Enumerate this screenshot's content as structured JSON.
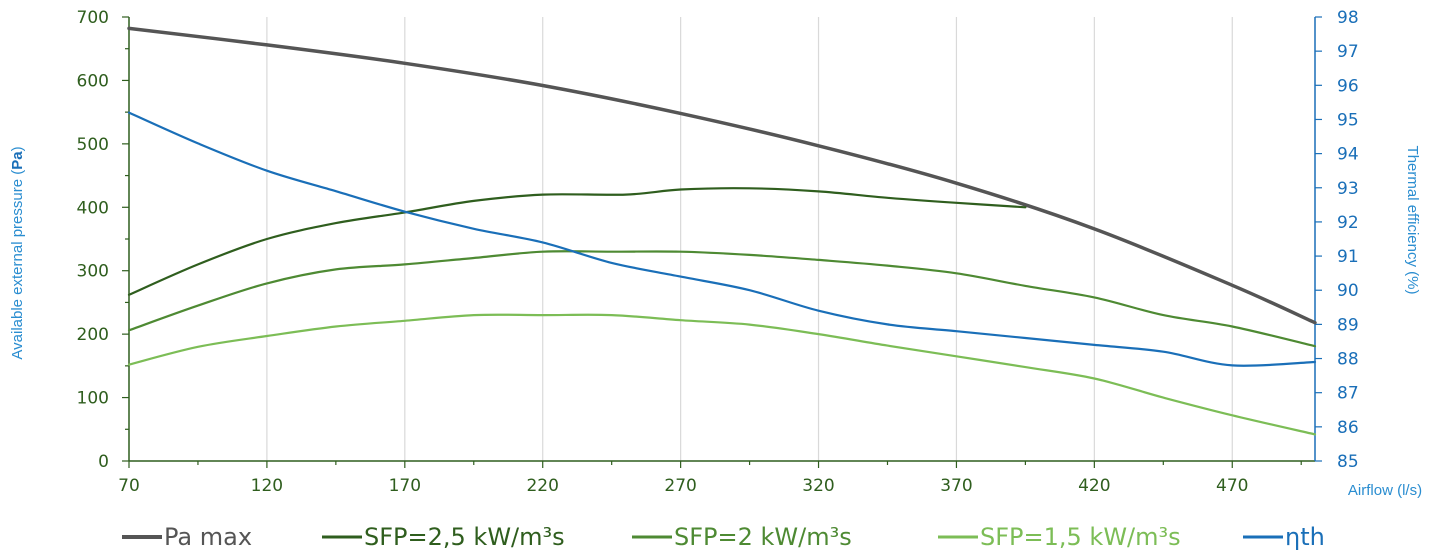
{
  "chart_data": {
    "type": "line",
    "ylabel_parts": [
      "Available external pressure (",
      "Pa",
      ")"
    ],
    "y2label": "Thermal efficiency (%)",
    "xlabel": "Airflow (l/s)",
    "xlim": [
      70,
      500
    ],
    "ylim": [
      0,
      700
    ],
    "y2lim": [
      85,
      98
    ],
    "x_ticks": [
      "70",
      "120",
      "170",
      "220",
      "270",
      "320",
      "370",
      "420",
      "470"
    ],
    "y_ticks": [
      "0",
      "100",
      "200",
      "300",
      "400",
      "500",
      "600",
      "700"
    ],
    "y2_ticks": [
      "85",
      "86",
      "87",
      "88",
      "89",
      "90",
      "91",
      "92",
      "93",
      "94",
      "95",
      "96",
      "97",
      "98"
    ],
    "grid": "vertical",
    "legend_position": "bottom",
    "series": [
      {
        "name": "Pa max",
        "axis": "left",
        "color": "#555555",
        "x": [
          70,
          120,
          170,
          220,
          270,
          320,
          370,
          420,
          470,
          500
        ],
        "y": [
          682,
          656,
          627,
          592,
          548,
          497,
          438,
          366,
          277,
          218
        ]
      },
      {
        "name": "SFP=2,5 kW/m³s",
        "axis": "left",
        "color": "#2f5e1e",
        "x": [
          70,
          95,
          120,
          145,
          170,
          195,
          220,
          250,
          270,
          295,
          320,
          345,
          370,
          395
        ],
        "y": [
          262,
          310,
          350,
          375,
          392,
          410,
          420,
          420,
          428,
          430,
          425,
          415,
          407,
          400
        ]
      },
      {
        "name": "SFP=2 kW/m³s",
        "axis": "left",
        "color": "#4e8a33",
        "x": [
          70,
          95,
          120,
          145,
          170,
          195,
          220,
          245,
          270,
          295,
          320,
          345,
          370,
          395,
          420,
          445,
          470,
          500
        ],
        "y": [
          206,
          245,
          280,
          302,
          310,
          320,
          330,
          330,
          330,
          325,
          317,
          308,
          296,
          276,
          258,
          230,
          212,
          181
        ]
      },
      {
        "name": "SFP=1,5 kW/m³s",
        "axis": "left",
        "color": "#7cbd56",
        "x": [
          70,
          95,
          120,
          145,
          170,
          195,
          220,
          245,
          270,
          295,
          320,
          345,
          370,
          395,
          420,
          445,
          470,
          500
        ],
        "y": [
          152,
          180,
          197,
          212,
          221,
          230,
          230,
          230,
          222,
          215,
          200,
          182,
          165,
          148,
          130,
          100,
          72,
          42
        ]
      },
      {
        "name": "ηth",
        "axis": "right",
        "color": "#1a6fb8",
        "x": [
          70,
          95,
          120,
          145,
          170,
          195,
          220,
          245,
          270,
          295,
          320,
          345,
          370,
          395,
          420,
          445,
          470,
          500
        ],
        "y": [
          95.2,
          94.3,
          93.5,
          92.9,
          92.3,
          91.8,
          91.4,
          90.8,
          90.4,
          90.0,
          89.4,
          89.0,
          88.8,
          88.6,
          88.4,
          88.2,
          87.8,
          87.9
        ]
      }
    ]
  }
}
